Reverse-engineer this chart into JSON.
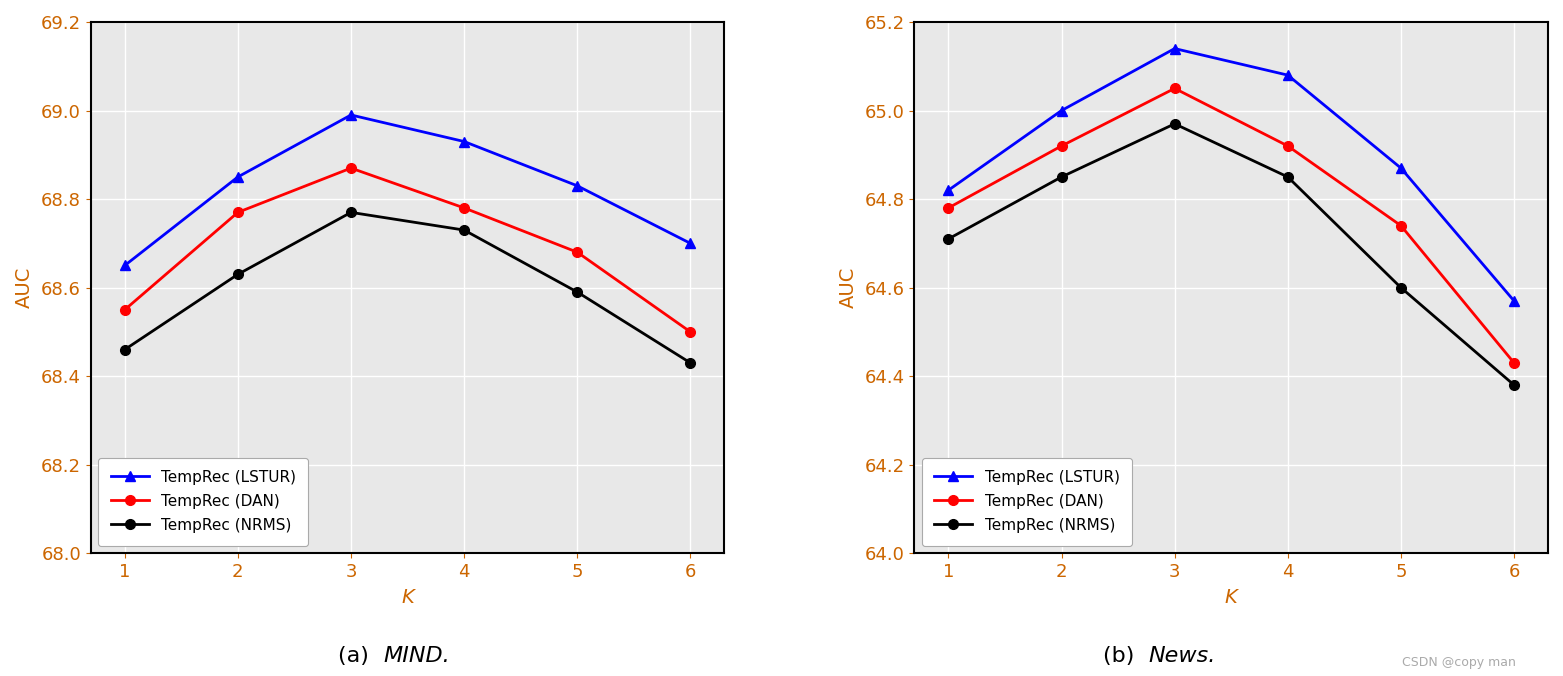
{
  "x": [
    1,
    2,
    3,
    4,
    5,
    6
  ],
  "mind": {
    "LSTUR": [
      68.65,
      68.85,
      68.99,
      68.93,
      68.83,
      68.7
    ],
    "DAN": [
      68.55,
      68.77,
      68.87,
      68.78,
      68.68,
      68.5
    ],
    "NRMS": [
      68.46,
      68.63,
      68.77,
      68.73,
      68.59,
      68.43
    ]
  },
  "news": {
    "LSTUR": [
      64.82,
      65.0,
      65.14,
      65.08,
      64.87,
      64.57
    ],
    "DAN": [
      64.78,
      64.92,
      65.05,
      64.92,
      64.74,
      64.43
    ],
    "NRMS": [
      64.71,
      64.85,
      64.97,
      64.85,
      64.6,
      64.38
    ]
  },
  "colors": {
    "LSTUR": "#0000ff",
    "DAN": "#ff0000",
    "NRMS": "#000000"
  },
  "labels": {
    "LSTUR": "TempRec (LSTUR)",
    "DAN": "TempRec (DAN)",
    "NRMS": "TempRec (NRMS)"
  },
  "mind_ylim": [
    68.0,
    69.2
  ],
  "mind_yticks": [
    68.0,
    68.2,
    68.4,
    68.6,
    68.8,
    69.0,
    69.2
  ],
  "news_ylim": [
    64.0,
    65.2
  ],
  "news_yticks": [
    64.0,
    64.2,
    64.4,
    64.6,
    64.8,
    65.0,
    65.2
  ],
  "xlabel": "K",
  "ylabel": "AUC",
  "caption_left": "(a)",
  "caption_left_italic": "MIND.",
  "caption_right": "(b)",
  "caption_right_italic": "News.",
  "watermark": "CSDN @copy man",
  "outer_bg": "#ffffff",
  "plot_bg": "#e8e8e8",
  "grid_color": "#ffffff",
  "tick_label_color": "#cc6600",
  "axis_label_color": "#cc6600"
}
